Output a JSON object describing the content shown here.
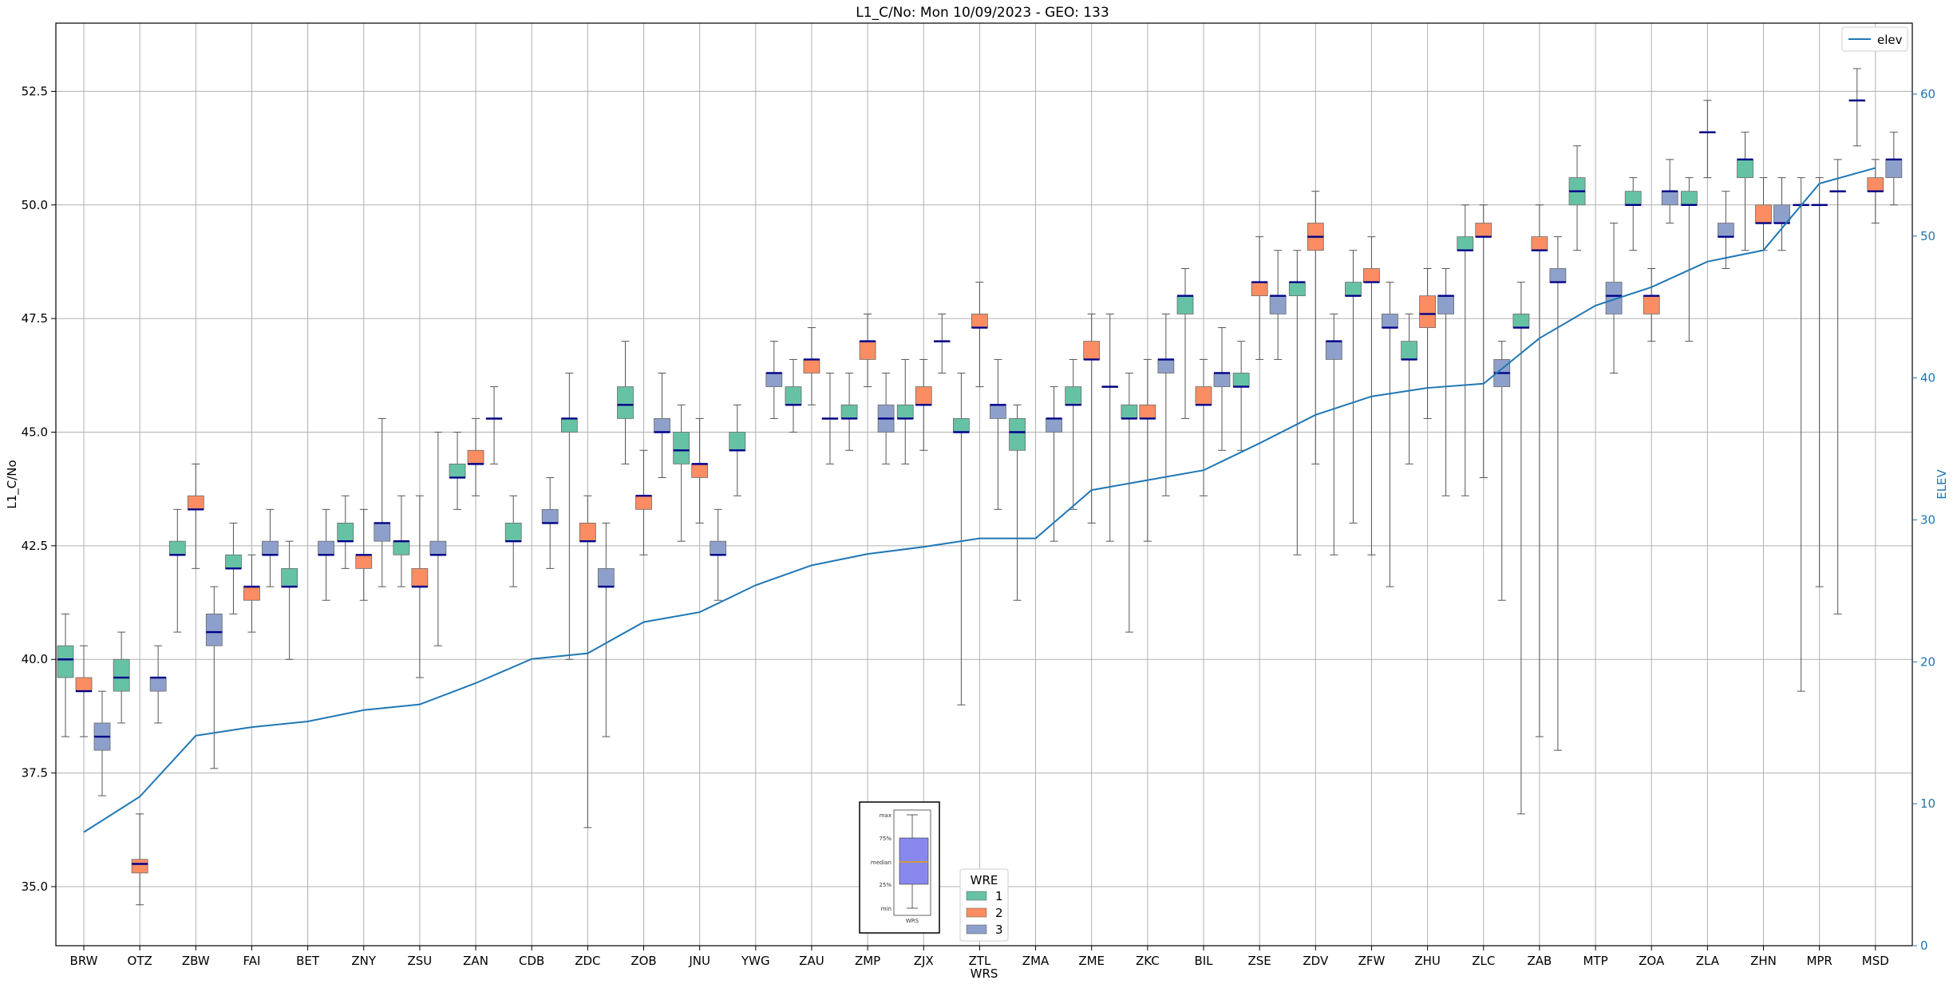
{
  "chart_data": {
    "type": "box",
    "title": "L1_C/No: Mon 10/09/2023 - GEO: 133",
    "xlabel": "WRS",
    "ylabel": "L1_C/No",
    "ylabel_right": "ELEV",
    "ylim": [
      33.7,
      54.0
    ],
    "ylim_right": [
      0,
      65
    ],
    "yticks": [
      "35.0",
      "37.5",
      "40.0",
      "42.5",
      "45.0",
      "47.5",
      "50.0",
      "52.5"
    ],
    "yticks_right": [
      "0",
      "10",
      "20",
      "30",
      "40",
      "50",
      "60"
    ],
    "grid": true,
    "categories": [
      "BRW",
      "OTZ",
      "ZBW",
      "FAI",
      "BET",
      "ZNY",
      "ZSU",
      "ZAN",
      "CDB",
      "ZDC",
      "ZOB",
      "JNU",
      "YWG",
      "ZAU",
      "ZMP",
      "ZJX",
      "ZTL",
      "ZMA",
      "ZME",
      "ZKC",
      "BIL",
      "ZSE",
      "ZDV",
      "ZFW",
      "ZHU",
      "ZLC",
      "ZAB",
      "MTP",
      "ZOA",
      "ZLA",
      "ZHN",
      "MPR",
      "MSD"
    ],
    "wre_colors": {
      "1": "#66c2a5",
      "2": "#fc8d62",
      "3": "#8da0cb"
    },
    "median_color": "#00008b",
    "elev_color": "#1f77b4",
    "boxes": [
      [
        [
          1,
          38.3,
          39.6,
          40.0,
          40.3,
          41.0
        ],
        [
          2,
          38.3,
          39.3,
          39.3,
          39.6,
          40.3
        ],
        [
          3,
          37.0,
          38.0,
          38.3,
          38.6,
          39.3
        ]
      ],
      [
        [
          1,
          38.6,
          39.3,
          39.6,
          40.0,
          40.6
        ],
        [
          2,
          34.6,
          35.3,
          35.5,
          35.6,
          36.6
        ],
        [
          3,
          38.6,
          39.3,
          39.6,
          39.6,
          40.3
        ]
      ],
      [
        [
          1,
          40.6,
          42.3,
          42.3,
          42.6,
          43.3
        ],
        [
          2,
          42.0,
          43.3,
          43.3,
          43.6,
          44.3
        ],
        [
          3,
          37.6,
          40.3,
          40.6,
          41.0,
          41.6
        ]
      ],
      [
        [
          1,
          41.0,
          42.0,
          42.0,
          42.3,
          43.0
        ],
        [
          2,
          40.6,
          41.3,
          41.6,
          41.6,
          42.3
        ],
        [
          3,
          41.6,
          42.3,
          42.3,
          42.6,
          43.3
        ]
      ],
      [
        [
          1,
          40.0,
          41.6,
          41.6,
          42.0,
          42.6
        ],
        [
          3,
          41.3,
          42.3,
          42.3,
          42.6,
          43.3
        ]
      ],
      [
        [
          1,
          42.0,
          42.6,
          42.6,
          43.0,
          43.6
        ],
        [
          2,
          41.3,
          42.0,
          42.3,
          42.3,
          43.3
        ],
        [
          3,
          41.6,
          42.6,
          43.0,
          43.0,
          45.3
        ]
      ],
      [
        [
          1,
          41.6,
          42.3,
          42.6,
          42.6,
          43.6
        ],
        [
          2,
          39.6,
          41.6,
          41.6,
          42.0,
          43.6
        ],
        [
          3,
          40.3,
          42.3,
          42.3,
          42.6,
          45.0
        ]
      ],
      [
        [
          1,
          43.3,
          44.0,
          44.0,
          44.3,
          45.0
        ],
        [
          2,
          43.6,
          44.3,
          44.3,
          44.6,
          45.3
        ],
        [
          3,
          44.3,
          45.3,
          45.3,
          45.3,
          46.0
        ]
      ],
      [
        [
          1,
          41.6,
          42.6,
          42.6,
          43.0,
          43.6
        ],
        [
          3,
          42.0,
          43.0,
          43.0,
          43.3,
          44.0
        ]
      ],
      [
        [
          1,
          40.0,
          45.0,
          45.3,
          45.3,
          46.3
        ],
        [
          2,
          36.3,
          42.6,
          42.6,
          43.0,
          43.6
        ],
        [
          3,
          38.3,
          41.6,
          41.6,
          42.0,
          43.0
        ]
      ],
      [
        [
          1,
          44.3,
          45.3,
          45.6,
          46.0,
          47.0
        ],
        [
          2,
          42.3,
          43.3,
          43.6,
          43.6,
          44.6
        ],
        [
          3,
          44.0,
          45.0,
          45.0,
          45.3,
          46.3
        ]
      ],
      [
        [
          1,
          42.6,
          44.3,
          44.6,
          45.0,
          45.6
        ],
        [
          2,
          43.0,
          44.0,
          44.3,
          44.3,
          45.3
        ],
        [
          3,
          41.3,
          42.3,
          42.3,
          42.6,
          43.3
        ]
      ],
      [
        [
          1,
          43.6,
          44.6,
          44.6,
          45.0,
          45.6
        ],
        [
          3,
          45.3,
          46.0,
          46.3,
          46.3,
          47.0
        ]
      ],
      [
        [
          1,
          45.0,
          45.6,
          45.6,
          46.0,
          46.6
        ],
        [
          2,
          45.6,
          46.3,
          46.6,
          46.6,
          47.3
        ],
        [
          3,
          44.3,
          45.3,
          45.3,
          45.3,
          46.3
        ]
      ],
      [
        [
          1,
          44.6,
          45.3,
          45.3,
          45.6,
          46.3
        ],
        [
          2,
          46.0,
          46.6,
          47.0,
          47.0,
          47.6
        ],
        [
          3,
          44.3,
          45.0,
          45.3,
          45.6,
          46.3
        ]
      ],
      [
        [
          1,
          44.3,
          45.3,
          45.3,
          45.6,
          46.6
        ],
        [
          2,
          44.6,
          45.6,
          45.6,
          46.0,
          46.6
        ],
        [
          3,
          46.3,
          47.0,
          47.0,
          47.0,
          47.6
        ]
      ],
      [
        [
          1,
          39.0,
          45.0,
          45.0,
          45.3,
          46.3
        ],
        [
          2,
          46.0,
          47.3,
          47.3,
          47.6,
          48.3
        ],
        [
          3,
          43.3,
          45.3,
          45.6,
          45.6,
          46.6
        ]
      ],
      [
        [
          1,
          41.3,
          44.6,
          45.0,
          45.3,
          45.6
        ],
        [
          3,
          42.6,
          45.0,
          45.3,
          45.3,
          46.0
        ]
      ],
      [
        [
          1,
          43.3,
          45.6,
          45.6,
          46.0,
          46.6
        ],
        [
          2,
          43.0,
          46.6,
          46.6,
          47.0,
          47.6
        ],
        [
          3,
          42.6,
          46.0,
          46.0,
          46.0,
          47.6
        ]
      ],
      [
        [
          1,
          40.6,
          45.3,
          45.3,
          45.6,
          46.3
        ],
        [
          2,
          42.6,
          45.3,
          45.3,
          45.6,
          46.6
        ],
        [
          3,
          43.6,
          46.3,
          46.6,
          46.6,
          47.6
        ]
      ],
      [
        [
          1,
          45.3,
          47.6,
          48.0,
          48.0,
          48.6
        ],
        [
          2,
          43.6,
          45.6,
          45.6,
          46.0,
          46.6
        ],
        [
          3,
          44.6,
          46.0,
          46.3,
          46.3,
          47.3
        ]
      ],
      [
        [
          1,
          44.6,
          46.0,
          46.0,
          46.3,
          47.0
        ],
        [
          2,
          46.6,
          48.0,
          48.3,
          48.3,
          49.3
        ],
        [
          3,
          46.6,
          47.6,
          48.0,
          48.0,
          49.0
        ]
      ],
      [
        [
          1,
          42.3,
          48.0,
          48.3,
          48.3,
          49.0
        ],
        [
          2,
          44.3,
          49.0,
          49.3,
          49.6,
          50.3
        ],
        [
          3,
          42.3,
          46.6,
          47.0,
          47.0,
          47.6
        ]
      ],
      [
        [
          1,
          43.0,
          48.0,
          48.0,
          48.3,
          49.0
        ],
        [
          2,
          42.3,
          48.3,
          48.3,
          48.6,
          49.3
        ],
        [
          3,
          41.6,
          47.3,
          47.3,
          47.6,
          48.3
        ]
      ],
      [
        [
          1,
          44.3,
          46.6,
          46.6,
          47.0,
          47.6
        ],
        [
          2,
          45.3,
          47.3,
          47.6,
          48.0,
          48.6
        ],
        [
          3,
          43.6,
          47.6,
          48.0,
          48.0,
          48.6
        ]
      ],
      [
        [
          1,
          43.6,
          49.0,
          49.0,
          49.3,
          50.0
        ],
        [
          2,
          44.0,
          49.3,
          49.3,
          49.6,
          50.0
        ],
        [
          3,
          41.3,
          46.0,
          46.3,
          46.6,
          47.0
        ]
      ],
      [
        [
          1,
          36.6,
          47.3,
          47.3,
          47.6,
          48.3
        ],
        [
          2,
          38.3,
          49.0,
          49.0,
          49.3,
          50.0
        ],
        [
          3,
          38.0,
          48.3,
          48.3,
          48.6,
          49.3
        ]
      ],
      [
        [
          1,
          49.0,
          50.0,
          50.3,
          50.6,
          51.3
        ],
        [
          3,
          46.3,
          47.6,
          48.0,
          48.3,
          49.6
        ]
      ],
      [
        [
          1,
          49.0,
          50.0,
          50.0,
          50.3,
          50.6
        ],
        [
          2,
          47.0,
          47.6,
          48.0,
          48.0,
          48.6
        ],
        [
          3,
          49.6,
          50.0,
          50.3,
          50.3,
          51.0
        ]
      ],
      [
        [
          1,
          47.0,
          50.0,
          50.0,
          50.3,
          50.6
        ],
        [
          2,
          50.6,
          51.6,
          51.6,
          51.6,
          52.3
        ],
        [
          3,
          48.6,
          49.3,
          49.3,
          49.6,
          50.3
        ]
      ],
      [
        [
          1,
          49.0,
          50.6,
          51.0,
          51.0,
          51.6
        ],
        [
          2,
          49.0,
          49.6,
          49.6,
          50.0,
          50.6
        ],
        [
          3,
          49.0,
          49.6,
          49.6,
          50.0,
          50.6
        ]
      ],
      [
        [
          1,
          39.3,
          50.0,
          50.0,
          50.0,
          50.6
        ],
        [
          2,
          41.6,
          50.0,
          50.0,
          50.0,
          50.6
        ],
        [
          3,
          41.0,
          50.3,
          50.3,
          50.3,
          51.0
        ]
      ],
      [
        [
          1,
          51.3,
          52.3,
          52.3,
          52.3,
          53.0
        ],
        [
          2,
          49.6,
          50.3,
          50.3,
          50.6,
          51.0
        ],
        [
          3,
          50.0,
          50.6,
          51.0,
          51.0,
          51.6
        ]
      ]
    ],
    "series": [
      {
        "name": "elev",
        "values": [
          8,
          10.5,
          14.8,
          15.4,
          15.8,
          16.6,
          17,
          18.5,
          20.2,
          20.6,
          22.8,
          23.5,
          25.4,
          26.8,
          27.6,
          28.1,
          28.7,
          28.7,
          32.1,
          32.8,
          33.5,
          35.4,
          37.4,
          38.7,
          39.3,
          39.6,
          42.8,
          45.1,
          46.4,
          48.2,
          49,
          53.7,
          54.8
        ]
      }
    ],
    "legend": {
      "position": "top-right",
      "entries": [
        "elev"
      ]
    },
    "wre_legend": {
      "title": "WRE",
      "position": "bottom-center",
      "entries": [
        "1",
        "2",
        "3"
      ]
    },
    "inset_key": {
      "labels": [
        "max",
        "75%",
        "median",
        "25%",
        "min"
      ],
      "xlabel": "WRS"
    }
  }
}
